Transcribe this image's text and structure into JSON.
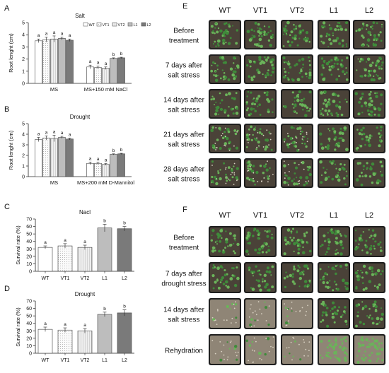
{
  "panel_letters": {
    "A": "A",
    "B": "B",
    "C": "C",
    "D": "D",
    "E": "E",
    "F": "F"
  },
  "colors": {
    "WT": "#ffffff",
    "VT1": "#f3f3f3",
    "VT2": "#d8d8d8",
    "L1": "#bdbdbd",
    "L2": "#7a7a7a",
    "soil": "#4a4238",
    "soil_dry": "#8f8576",
    "leaf": "#3f8a3a",
    "leaf_light": "#6bb35a",
    "pot": "#1f1f1f"
  },
  "chart_data": [
    {
      "id": "A",
      "type": "bar",
      "title": "Salt",
      "ylabel": "Root lenght (cm)",
      "ylim": [
        0,
        5
      ],
      "yticks": [
        "0",
        "1",
        "2",
        "3",
        "4",
        "5"
      ],
      "groups": [
        "MS",
        "MS+150 mM NaCl"
      ],
      "legend": [
        "WT",
        "VT1",
        "VT2",
        "L1",
        "L2"
      ],
      "series": [
        {
          "name": "WT",
          "values": [
            3.5,
            1.35
          ],
          "err": [
            0.15,
            0.15
          ]
        },
        {
          "name": "VT1",
          "values": [
            3.6,
            1.3
          ],
          "err": [
            0.2,
            0.12
          ]
        },
        {
          "name": "VT2",
          "values": [
            3.65,
            1.25
          ],
          "err": [
            0.25,
            0.1
          ]
        },
        {
          "name": "L1",
          "values": [
            3.7,
            2.05
          ],
          "err": [
            0.12,
            0.05
          ]
        },
        {
          "name": "L2",
          "values": [
            3.55,
            2.1
          ],
          "err": [
            0.1,
            0.05
          ]
        }
      ],
      "sig": [
        [
          "a",
          "a",
          "a",
          "a",
          "a"
        ],
        [
          "a",
          "a",
          "a",
          "b",
          "b"
        ]
      ]
    },
    {
      "id": "B",
      "type": "bar",
      "title": "Drought",
      "ylabel": "Root lenght (cm)",
      "ylim": [
        0,
        5
      ],
      "yticks": [
        "0",
        "1",
        "2",
        "3",
        "4",
        "5"
      ],
      "groups": [
        "MS",
        "MS+200 mM D-Mannitol"
      ],
      "series": [
        {
          "name": "WT",
          "values": [
            3.5,
            1.25
          ],
          "err": [
            0.2,
            0.12
          ]
        },
        {
          "name": "VT1",
          "values": [
            3.65,
            1.25
          ],
          "err": [
            0.2,
            0.1
          ]
        },
        {
          "name": "VT2",
          "values": [
            3.6,
            1.15
          ],
          "err": [
            0.3,
            0.08
          ]
        },
        {
          "name": "L1",
          "values": [
            3.7,
            2.1
          ],
          "err": [
            0.1,
            0.05
          ]
        },
        {
          "name": "L2",
          "values": [
            3.55,
            2.15
          ],
          "err": [
            0.08,
            0.05
          ]
        }
      ],
      "sig": [
        [
          "a",
          "a",
          "a",
          "a",
          "a"
        ],
        [
          "a",
          "a",
          "a",
          "b",
          "b"
        ]
      ]
    },
    {
      "id": "C",
      "type": "bar",
      "title": "Nacl",
      "ylabel": "Survival rate (%)",
      "ylim": [
        0,
        70
      ],
      "yticks": [
        "0",
        "10",
        "20",
        "30",
        "40",
        "50",
        "60",
        "70"
      ],
      "categories": [
        "WT",
        "VT1",
        "VT2",
        "L1",
        "L2"
      ],
      "values": [
        32,
        34,
        32,
        58,
        57
      ],
      "err": [
        2,
        3,
        3,
        5,
        3
      ],
      "sig": [
        "a",
        "a",
        "a",
        "b",
        "b"
      ]
    },
    {
      "id": "D",
      "type": "bar",
      "title": "Drought",
      "ylabel": "Survival rate (%)",
      "ylim": [
        0,
        70
      ],
      "yticks": [
        "0",
        "10",
        "20",
        "30",
        "40",
        "50",
        "60",
        "70"
      ],
      "categories": [
        "WT",
        "VT1",
        "VT2",
        "L1",
        "L2"
      ],
      "values": [
        32,
        31,
        30,
        52,
        54
      ],
      "err": [
        3,
        3,
        3,
        3,
        4
      ],
      "sig": [
        "a",
        "a",
        "a",
        "b",
        "b"
      ]
    }
  ],
  "photo_E": {
    "columns": [
      "WT",
      "VT1",
      "VT2",
      "L1",
      "L2"
    ],
    "rows": [
      {
        "label": [
          "Before",
          "treatment"
        ],
        "state": [
          0,
          0,
          0,
          0,
          0
        ]
      },
      {
        "label": [
          "7 days after",
          "salt stress"
        ],
        "state": [
          0,
          0,
          0,
          0,
          0
        ]
      },
      {
        "label": [
          "14 days after",
          "salt stress"
        ],
        "state": [
          1,
          1,
          1,
          0,
          0
        ]
      },
      {
        "label": [
          "21 days after",
          "salt stress"
        ],
        "state": [
          2,
          2,
          2,
          1,
          1
        ]
      },
      {
        "label": [
          "28 days after",
          "salt stress"
        ],
        "state": [
          2,
          2,
          2,
          1,
          1
        ]
      }
    ]
  },
  "photo_F": {
    "columns": [
      "WT",
      "VT1",
      "VT2",
      "L1",
      "L2"
    ],
    "rows": [
      {
        "label": [
          "Before",
          "treatment"
        ],
        "state": [
          0,
          0,
          0,
          0,
          0
        ]
      },
      {
        "label": [
          "7 days after",
          "drought stress"
        ],
        "state": [
          1,
          1,
          1,
          1,
          1
        ]
      },
      {
        "label": [
          "14 days after",
          "salt stress"
        ],
        "state": [
          3,
          3,
          3,
          1,
          1
        ]
      },
      {
        "label": [
          "Rehydration"
        ],
        "state": [
          3,
          3,
          3,
          4,
          4
        ]
      }
    ]
  }
}
